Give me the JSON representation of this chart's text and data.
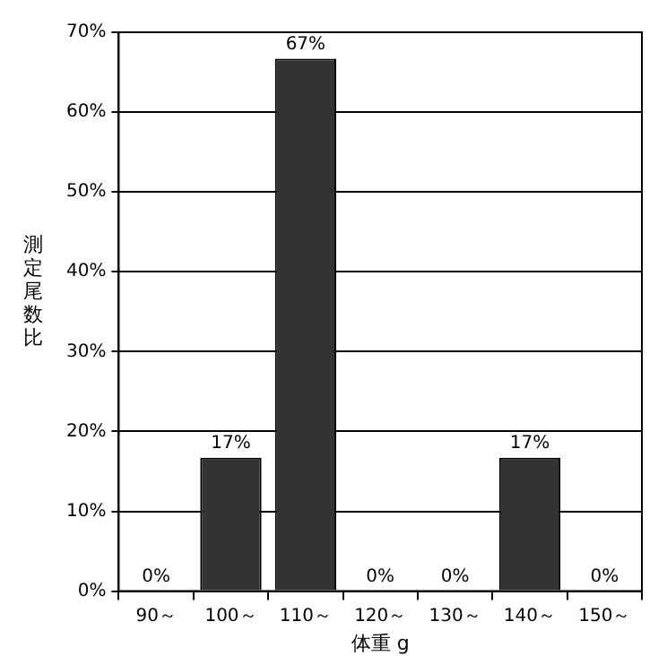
{
  "chart_data": {
    "type": "bar",
    "xlabel": "体重 g",
    "ylabel": "測定尾数比",
    "categories": [
      "90～",
      "100～",
      "110～",
      "120～",
      "130～",
      "140～",
      "150～"
    ],
    "values": [
      0,
      16.7,
      66.7,
      0,
      0,
      16.7,
      0
    ],
    "value_labels": [
      "0%",
      "17%",
      "67%",
      "0%",
      "0%",
      "17%",
      "0%"
    ],
    "color": "#333333",
    "ylim": [
      0,
      70
    ],
    "yticks": [
      {
        "value": 0,
        "label": "0%"
      },
      {
        "value": 10,
        "label": "10%"
      },
      {
        "value": 20,
        "label": "20%"
      },
      {
        "value": 30,
        "label": "30%"
      },
      {
        "value": 40,
        "label": "40%"
      },
      {
        "value": 50,
        "label": "50%"
      },
      {
        "value": 60,
        "label": "60%"
      },
      {
        "value": 70,
        "label": "70%"
      }
    ],
    "grid": "y",
    "legend": false
  }
}
